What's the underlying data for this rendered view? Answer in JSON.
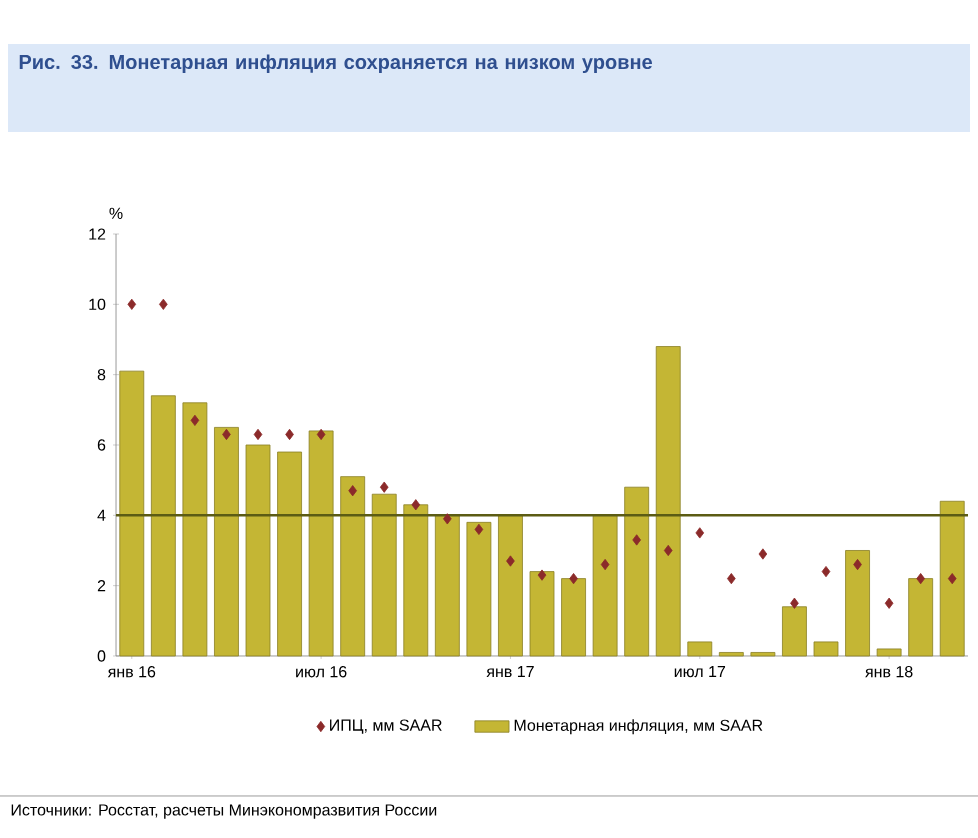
{
  "chart_data": {
    "type": "bar",
    "title": "Рис. 33. Монетарная инфляция сохраняется на низком уровне",
    "ylabel": "%",
    "categories": [
      "янв 16",
      null,
      null,
      null,
      null,
      null,
      "июл 16",
      null,
      null,
      null,
      null,
      null,
      "янв 17",
      null,
      null,
      null,
      null,
      null,
      "июл 17",
      null,
      null,
      null,
      null,
      null,
      "янв 18",
      null,
      null
    ],
    "series": [
      {
        "name": "ИПЦ, мм SAAR",
        "type": "scatter",
        "color": "#8b2a2a",
        "marker": "diamond",
        "values": [
          10.0,
          10.0,
          6.7,
          6.3,
          6.3,
          6.3,
          6.3,
          4.7,
          4.8,
          4.3,
          3.9,
          3.6,
          2.7,
          2.3,
          2.2,
          2.6,
          3.3,
          3.0,
          3.5,
          2.2,
          2.9,
          1.5,
          2.4,
          2.6,
          1.5,
          2.2,
          2.2
        ]
      },
      {
        "name": "Монетарная инфляция, мм SAAR",
        "color": "#c4b634",
        "values": [
          8.1,
          7.4,
          7.2,
          6.5,
          6.0,
          5.8,
          6.4,
          5.1,
          4.6,
          4.3,
          4.0,
          3.8,
          4.0,
          2.4,
          2.2,
          4.0,
          4.8,
          8.8,
          0.4,
          0.1,
          0.1,
          1.4,
          0.4,
          3.0,
          0.2,
          2.2,
          4.4
        ]
      }
    ],
    "ylim": [
      0,
      12
    ],
    "yticks": [
      0,
      2,
      4,
      6,
      8,
      10,
      12
    ],
    "ref_lines": [
      {
        "axis": "y",
        "value": 4,
        "color": "#5c5c14"
      }
    ],
    "legend": "bottom",
    "annotations": [
      "Источники: Росстат, расчеты Минэкономразвития России"
    ]
  }
}
